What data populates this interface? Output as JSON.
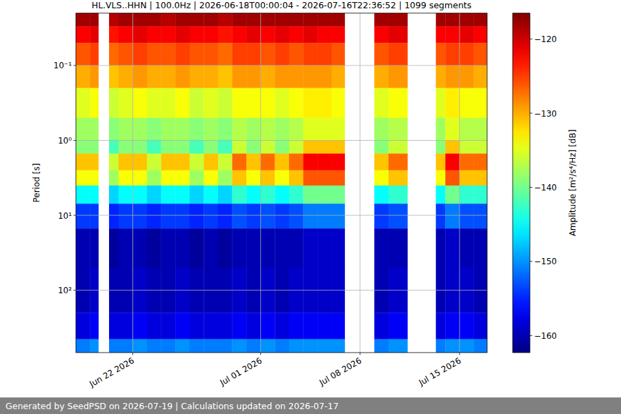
{
  "chart_data": {
    "type": "heatmap",
    "title": "HL.VLS..HHN | 100.0Hz | 2026-06-18T00:00:04 - 2026-07-16T22:36:52 | 1099 segments",
    "y_label": "Period [s]",
    "footer": "Generated by SeedPSD on 2026-07-19 | Calculations updated on 2026-07-17",
    "log": "y",
    "grid": true,
    "xlim": [
      "2026-06-18T00:00:04",
      "2026-07-16T22:36:52"
    ],
    "ylim": [
      0.02,
      680
    ],
    "xticks": [
      {
        "value": "2026-06-22",
        "label": "Jun 22 2026"
      },
      {
        "value": "2026-07-01",
        "label": "Jul 01 2026"
      },
      {
        "value": "2026-07-08",
        "label": "Jul 08 2026"
      },
      {
        "value": "2026-07-15",
        "label": "Jul 15 2026"
      }
    ],
    "yticks": [
      {
        "value": 0.1,
        "label": "10⁻¹"
      },
      {
        "value": 1,
        "label": "10⁰"
      },
      {
        "value": 10,
        "label": "10¹"
      },
      {
        "value": 100,
        "label": "10²"
      }
    ],
    "x_edges": [
      "2026-06-18T00:00:04",
      "2026-06-19T00:00",
      "2026-06-19T14:00",
      "2026-06-20T08:00",
      "2026-06-21T00:00",
      "2026-06-22T00:00",
      "2026-06-23T00:00",
      "2026-06-24T00:00",
      "2026-06-25T00:00",
      "2026-06-26T00:00",
      "2026-06-27T00:00",
      "2026-06-28T00:00",
      "2026-06-29T00:00",
      "2026-06-30T00:00",
      "2026-07-01T00:00",
      "2026-07-02T00:00",
      "2026-07-03T00:00",
      "2026-07-04T00:00",
      "2026-07-05T00:00",
      "2026-07-06T00:00",
      "2026-07-06T22:00",
      "2026-07-09T00:00",
      "2026-07-10T00:00",
      "2026-07-11T08:00",
      "2026-07-13T08:00",
      "2026-07-14T00:00",
      "2026-07-15T00:00",
      "2026-07-16T00:00",
      "2026-07-16T22:36:52"
    ],
    "y_edges": [
      0.02,
      0.03,
      0.05,
      0.1,
      0.2,
      0.5,
      1,
      1.5,
      2.5,
      4,
      7,
      15,
      50,
      200,
      450,
      680
    ],
    "cells": [
      [
        -118,
        -118,
        null,
        -119,
        -118,
        -118,
        -118,
        -119,
        -118,
        -118,
        -118,
        -119,
        -118,
        -118,
        -118,
        -118,
        -118,
        -118,
        -118,
        -118,
        null,
        -118,
        -118,
        null,
        -118,
        -118,
        -118,
        -118
      ],
      [
        -122,
        -121,
        null,
        -123,
        -122,
        -121,
        -122,
        -122,
        -121,
        -122,
        -122,
        -123,
        -122,
        -121,
        -122,
        -121,
        -122,
        -121,
        -122,
        -122,
        null,
        -122,
        -121,
        null,
        -122,
        -122,
        -121,
        -122
      ],
      [
        -126,
        -125,
        null,
        -127,
        -126,
        -125,
        -126,
        -126,
        -125,
        -126,
        -126,
        -127,
        -125,
        -125,
        -126,
        -125,
        -126,
        -125,
        -125,
        -126,
        null,
        -126,
        -125,
        null,
        -126,
        -125,
        -125,
        -126
      ],
      [
        -130,
        -129,
        null,
        -131,
        -130,
        -129,
        -130,
        -130,
        -129,
        -130,
        -130,
        -131,
        -129,
        -129,
        -130,
        -129,
        -129,
        -129,
        -129,
        -130,
        null,
        -130,
        -129,
        null,
        -130,
        -129,
        -129,
        -130
      ],
      [
        -135,
        -134,
        null,
        -136,
        -135,
        -134,
        -135,
        -135,
        -134,
        -136,
        -135,
        -136,
        -134,
        -134,
        -134,
        -135,
        -134,
        -133,
        -133,
        -134,
        null,
        -135,
        -134,
        null,
        -135,
        -133,
        -134,
        -134
      ],
      [
        -138,
        -138,
        null,
        -139,
        -138,
        -138,
        -139,
        -138,
        -138,
        -139,
        -138,
        -139,
        -137,
        -138,
        -137,
        -138,
        -137,
        -135,
        -135,
        -135,
        null,
        -138,
        -137,
        null,
        -138,
        -135,
        -137,
        -137
      ],
      [
        -139,
        -139,
        null,
        -142,
        -139,
        -139,
        -142,
        -139,
        -139,
        -142,
        -139,
        -142,
        -136,
        -139,
        -136,
        -139,
        -136,
        -131,
        -131,
        -131,
        null,
        -139,
        -136,
        null,
        -139,
        -131,
        -136,
        -136
      ],
      [
        -131,
        -131,
        null,
        -136,
        -131,
        -131,
        -136,
        -131,
        -131,
        -136,
        -131,
        -136,
        -127,
        -131,
        -127,
        -131,
        -127,
        -122,
        -122,
        -122,
        null,
        -131,
        -127,
        null,
        -131,
        -122,
        -127,
        -127
      ],
      [
        -134,
        -134,
        null,
        -138,
        -134,
        -134,
        -138,
        -134,
        -134,
        -138,
        -134,
        -138,
        -131,
        -134,
        -131,
        -134,
        -131,
        -126,
        -126,
        -126,
        null,
        -134,
        -131,
        null,
        -134,
        -126,
        -131,
        -131
      ],
      [
        -145,
        -145,
        null,
        -147,
        -145,
        -145,
        -147,
        -145,
        -145,
        -147,
        -145,
        -147,
        -143,
        -145,
        -143,
        -145,
        -143,
        -140,
        -140,
        -140,
        null,
        -145,
        -143,
        null,
        -145,
        -140,
        -143,
        -143
      ],
      [
        -154,
        -154,
        null,
        -155,
        -154,
        -154,
        -155,
        -154,
        -154,
        -155,
        -154,
        -155,
        -153,
        -154,
        -153,
        -154,
        -153,
        -151,
        -151,
        -151,
        null,
        -154,
        -153,
        null,
        -154,
        -151,
        -153,
        -153
      ],
      [
        -160,
        -160,
        null,
        -161,
        -160,
        -160,
        -161,
        -160,
        -160,
        -161,
        -160,
        -161,
        -160,
        -160,
        -160,
        -160,
        -160,
        -159,
        -159,
        -159,
        null,
        -160,
        -160,
        null,
        -160,
        -159,
        -160,
        -160
      ],
      [
        -160,
        -159,
        null,
        -160,
        -160,
        -159,
        -160,
        -160,
        -159,
        -160,
        -160,
        -160,
        -159,
        -160,
        -159,
        -160,
        -159,
        -159,
        -159,
        -159,
        null,
        -160,
        -159,
        null,
        -160,
        -159,
        -159,
        -160
      ],
      [
        -158,
        -157,
        null,
        -158,
        -158,
        -157,
        -158,
        -158,
        -157,
        -158,
        -158,
        -158,
        -157,
        -158,
        -157,
        -158,
        -157,
        -157,
        -157,
        -157,
        null,
        -158,
        -157,
        null,
        -158,
        -157,
        -157,
        -158
      ],
      [
        -151,
        -150,
        null,
        -151,
        -151,
        -150,
        -151,
        -151,
        -150,
        -151,
        -151,
        -151,
        -150,
        -151,
        -150,
        -151,
        -150,
        -150,
        -150,
        -150,
        null,
        -151,
        -150,
        null,
        -151,
        -150,
        -150,
        -151
      ]
    ],
    "colorbar": {
      "label": "Amplitude [m²/s⁴/Hz] [dB]",
      "range": [
        -162.3,
        -116.5
      ],
      "ticks": [
        {
          "value": -120,
          "label": "−120"
        },
        {
          "value": -130,
          "label": "−130"
        },
        {
          "value": -140,
          "label": "−140"
        },
        {
          "value": -150,
          "label": "−150"
        },
        {
          "value": -160,
          "label": "−160"
        }
      ]
    }
  }
}
